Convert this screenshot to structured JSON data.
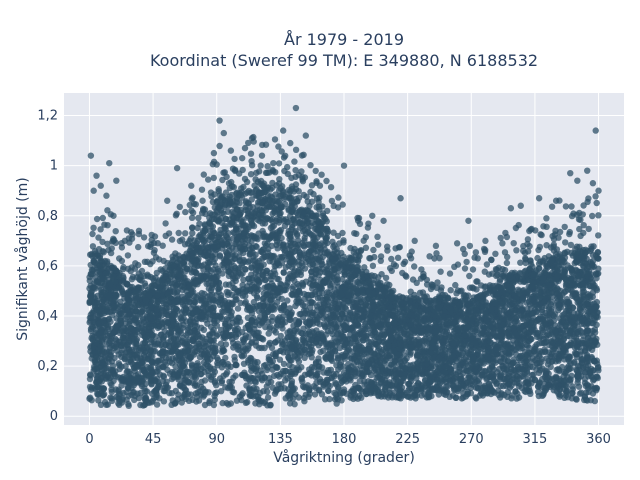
{
  "chart_data": {
    "type": "scatter",
    "title": "År 1979 - 2019",
    "subtitle": "Koordinat (Sweref 99 TM): E 349880, N 6188532",
    "xlabel": "Vågriktning (grader)",
    "ylabel": "Signifikant våghöjd (m)",
    "xlim": [
      -18,
      378
    ],
    "ylim": [
      -0.035,
      1.29
    ],
    "xticks": [
      0,
      45,
      90,
      135,
      180,
      225,
      270,
      315,
      360
    ],
    "xtick_labels": [
      "0",
      "45",
      "90",
      "135",
      "180",
      "225",
      "270",
      "315",
      "360"
    ],
    "yticks": [
      0,
      0.2,
      0.4,
      0.6,
      0.8,
      1,
      1.2
    ],
    "ytick_labels": [
      "0",
      "0,2",
      "0,4",
      "0,6",
      "0,8",
      "1",
      "1,2"
    ],
    "grid": true,
    "marker_color": "#2f5168",
    "plot_bg": "#e5e8f0",
    "grid_color": "#ffffff",
    "dense_band": {
      "x": [
        0,
        15,
        30,
        45,
        60,
        75,
        90,
        105,
        120,
        135,
        150,
        165,
        180,
        195,
        210,
        225,
        240,
        255,
        270,
        285,
        300,
        315,
        330,
        345,
        360
      ],
      "y_low": [
        0.04,
        0.04,
        0.04,
        0.04,
        0.04,
        0.04,
        0.04,
        0.04,
        0.04,
        0.04,
        0.04,
        0.04,
        0.05,
        0.07,
        0.07,
        0.07,
        0.07,
        0.07,
        0.07,
        0.07,
        0.07,
        0.07,
        0.07,
        0.06,
        0.05
      ],
      "y_high": [
        0.66,
        0.6,
        0.52,
        0.52,
        0.6,
        0.68,
        0.86,
        0.88,
        0.9,
        0.88,
        0.84,
        0.76,
        0.62,
        0.56,
        0.52,
        0.46,
        0.46,
        0.46,
        0.46,
        0.5,
        0.56,
        0.6,
        0.64,
        0.66,
        0.66
      ]
    },
    "outliers": [
      {
        "x": 1,
        "y": 1.04
      },
      {
        "x": 3,
        "y": 0.9
      },
      {
        "x": 5,
        "y": 0.96
      },
      {
        "x": 8,
        "y": 0.92
      },
      {
        "x": 12,
        "y": 0.88
      },
      {
        "x": 14,
        "y": 1.01
      },
      {
        "x": 17,
        "y": 0.8
      },
      {
        "x": 19,
        "y": 0.94
      },
      {
        "x": 25,
        "y": 0.7
      },
      {
        "x": 35,
        "y": 0.74
      },
      {
        "x": 55,
        "y": 0.86
      },
      {
        "x": 62,
        "y": 0.99
      },
      {
        "x": 72,
        "y": 0.92
      },
      {
        "x": 80,
        "y": 0.86
      },
      {
        "x": 88,
        "y": 1.05
      },
      {
        "x": 92,
        "y": 1.18
      },
      {
        "x": 95,
        "y": 1.13
      },
      {
        "x": 100,
        "y": 1.06
      },
      {
        "x": 108,
        "y": 1.03
      },
      {
        "x": 110,
        "y": 1.07
      },
      {
        "x": 115,
        "y": 1.11
      },
      {
        "x": 122,
        "y": 1.04
      },
      {
        "x": 130,
        "y": 1.01
      },
      {
        "x": 137,
        "y": 1.14
      },
      {
        "x": 142,
        "y": 1.09
      },
      {
        "x": 146,
        "y": 1.23
      },
      {
        "x": 153,
        "y": 1.12
      },
      {
        "x": 163,
        "y": 0.92
      },
      {
        "x": 180,
        "y": 1.0
      },
      {
        "x": 190,
        "y": 0.78
      },
      {
        "x": 200,
        "y": 0.8
      },
      {
        "x": 208,
        "y": 0.78
      },
      {
        "x": 220,
        "y": 0.87
      },
      {
        "x": 230,
        "y": 0.7
      },
      {
        "x": 245,
        "y": 0.68
      },
      {
        "x": 260,
        "y": 0.69
      },
      {
        "x": 268,
        "y": 0.78
      },
      {
        "x": 280,
        "y": 0.7
      },
      {
        "x": 298,
        "y": 0.83
      },
      {
        "x": 305,
        "y": 0.84
      },
      {
        "x": 318,
        "y": 0.87
      },
      {
        "x": 330,
        "y": 0.86
      },
      {
        "x": 340,
        "y": 0.97
      },
      {
        "x": 345,
        "y": 0.94
      },
      {
        "x": 352,
        "y": 0.98
      },
      {
        "x": 356,
        "y": 0.93
      },
      {
        "x": 358,
        "y": 1.14
      },
      {
        "x": 360,
        "y": 0.9
      }
    ]
  }
}
